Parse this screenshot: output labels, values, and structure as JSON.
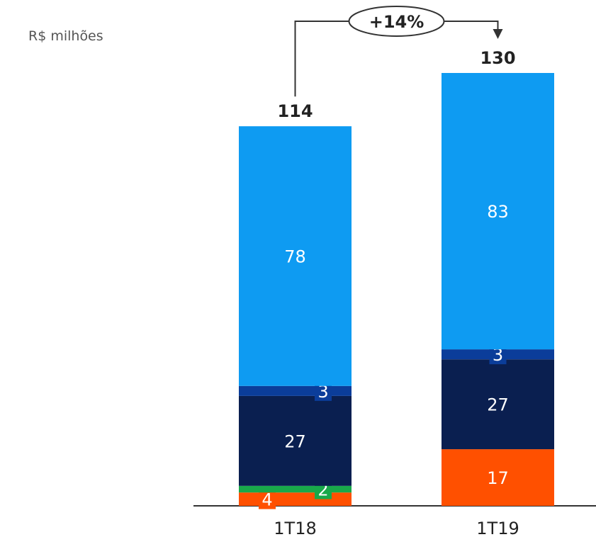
{
  "unit_label": "R$ milhões",
  "chart_data": {
    "type": "bar",
    "stacked": true,
    "categories": [
      "1T18",
      "1T19"
    ],
    "totals": [
      "114",
      "130"
    ],
    "growth_label": "+14%",
    "series": [
      {
        "values": [
          4,
          17
        ],
        "color": "#FF5000"
      },
      {
        "values": [
          2,
          0
        ],
        "color": "#18A84A"
      },
      {
        "values": [
          27,
          27
        ],
        "color": "#0A1F50"
      },
      {
        "values": [
          3,
          3
        ],
        "color": "#0B3D9A"
      },
      {
        "values": [
          78,
          83
        ],
        "color": "#0E9BF2"
      }
    ]
  }
}
